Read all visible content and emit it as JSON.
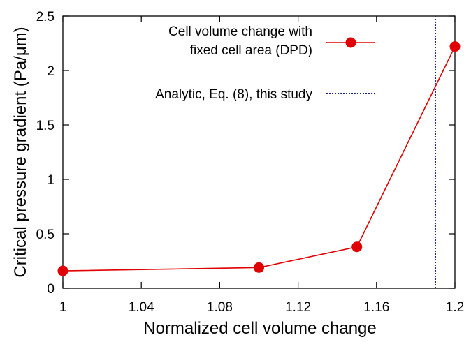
{
  "chart_data": {
    "type": "line",
    "xlabel": "Normalized cell volume change",
    "ylabel": "Critical pressure gradient (Pa/μm)",
    "xlim": [
      1.0,
      1.2
    ],
    "ylim": [
      0,
      2.5
    ],
    "xticks": [
      1.0,
      1.04,
      1.08,
      1.12,
      1.16,
      1.2
    ],
    "xtick_labels": [
      "1",
      "1.04",
      "1.08",
      "1.12",
      "1.16",
      "1.2"
    ],
    "yticks": [
      0,
      0.5,
      1,
      1.5,
      2,
      2.5
    ],
    "ytick_labels": [
      "0",
      "0.5",
      "1",
      "1.5",
      "2",
      "2.5"
    ],
    "grid": false,
    "legend_position": "top-right",
    "series": [
      {
        "name_lines": [
          "Cell volume change with",
          "fixed cell area (DPD)"
        ],
        "color": "#e00000",
        "marker": "circle",
        "x": [
          1.0,
          1.1,
          1.15,
          1.2
        ],
        "y": [
          0.16,
          0.19,
          0.38,
          2.22
        ]
      },
      {
        "name_lines": [
          "Analytic, Eq. (8), this study"
        ],
        "color": "#1a237e",
        "style": "dotted-vertical",
        "x_value": 1.19
      }
    ]
  }
}
